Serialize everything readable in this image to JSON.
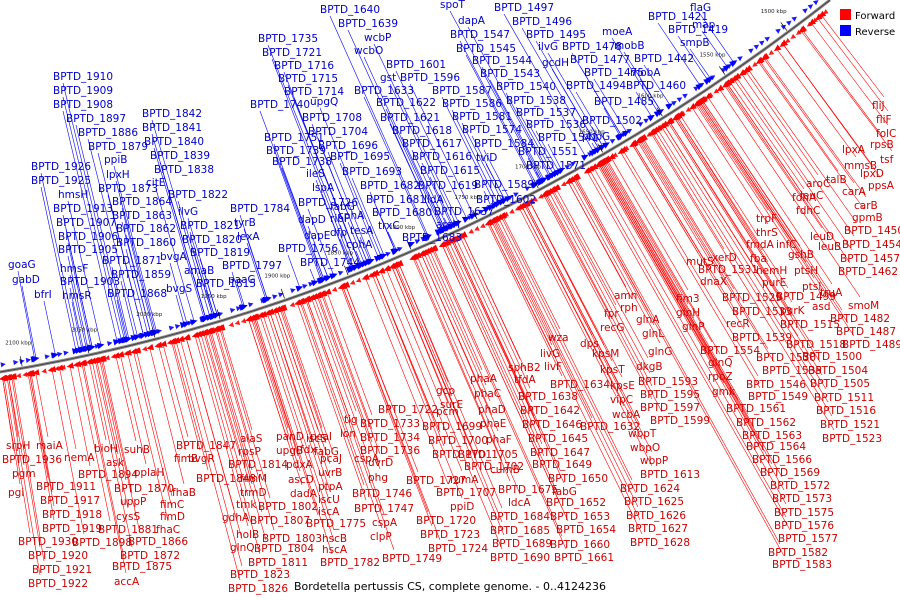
{
  "caption": "Bordetella pertussis CS, complete genome. - 0..4124236",
  "legend": {
    "forward_label": "Forward",
    "reverse_label": "Reverse",
    "forward_color": "#ff0000",
    "reverse_color": "#0000ff"
  },
  "axis_labels": [
    "2100 kbp",
    "2050 kbp",
    "2000 kbp",
    "1950 kbp",
    "1900 kbp",
    "1850 kbp",
    "1800 kbp",
    "1750 kbp",
    "1700 kbp",
    "1650 kbp",
    "1600 kbp",
    "1550 kbp",
    "1500 kbp"
  ],
  "reverse_genes": [
    [
      "goaG",
      8,
      268
    ],
    [
      "gabD",
      12,
      283
    ],
    [
      "bfrI",
      34,
      298
    ],
    [
      "hmsR",
      62,
      299
    ],
    [
      "BPTD_1903",
      60,
      285
    ],
    [
      "hmsF",
      60,
      272
    ],
    [
      "BPTD_1905",
      58,
      253
    ],
    [
      "BPTD_1906",
      58,
      240
    ],
    [
      "BPTD_1907",
      56,
      226
    ],
    [
      "BPTD_1913",
      53,
      212
    ],
    [
      "hmsH",
      58,
      198
    ],
    [
      "BPTD_1925",
      31,
      184
    ],
    [
      "BPTD_1926",
      31,
      170
    ],
    [
      "BPTD_1910",
      53,
      80
    ],
    [
      "BPTD_1909",
      53,
      94
    ],
    [
      "BPTD_1908",
      53,
      108
    ],
    [
      "BPTD_1897",
      66,
      122
    ],
    [
      "BPTD_1886",
      78,
      136
    ],
    [
      "BPTD_1879",
      88,
      150
    ],
    [
      "ppiB",
      104,
      163
    ],
    [
      "lpxH",
      106,
      178
    ],
    [
      "BPTD_1873",
      98,
      192
    ],
    [
      "BPTD_1864",
      112,
      205
    ],
    [
      "BPTD_1863",
      112,
      219
    ],
    [
      "BPTD_1862",
      116,
      232
    ],
    [
      "BPTD_1860",
      116,
      246
    ],
    [
      "BPTD_1871",
      102,
      264
    ],
    [
      "BPTD_1859",
      111,
      278
    ],
    [
      "BPTD_1868",
      107,
      297
    ],
    [
      "BPTD_1842",
      142,
      117
    ],
    [
      "BPTD_1841",
      142,
      131
    ],
    [
      "BPTD_1840",
      144,
      145
    ],
    [
      "BPTD_1839",
      150,
      159
    ],
    [
      "BPTD_1838",
      154,
      173
    ],
    [
      "citE",
      146,
      186
    ],
    [
      "BPTD_1822",
      168,
      198
    ],
    [
      "ilvG",
      178,
      215
    ],
    [
      "BPTD_1821",
      180,
      229
    ],
    [
      "BPTD_1820",
      182,
      243
    ],
    [
      "bvgA",
      160,
      260
    ],
    [
      "BPTD_1819",
      190,
      256
    ],
    [
      "amaB",
      184,
      274
    ],
    [
      "bvgS",
      166,
      292
    ],
    [
      "BPTD_1815",
      196,
      287
    ],
    [
      "BPTD_1797",
      222,
      269
    ],
    [
      "paaG",
      228,
      283
    ],
    [
      "BPTD_1784",
      230,
      212
    ],
    [
      "tyrB",
      234,
      226
    ],
    [
      "lexA",
      237,
      240
    ],
    [
      "BPTD_1735",
      258,
      42
    ],
    [
      "BPTD_1721",
      262,
      56
    ],
    [
      "BPTD_1716",
      274,
      69
    ],
    [
      "BPTD_1715",
      278,
      82
    ],
    [
      "BPTD_1714",
      284,
      95
    ],
    [
      "BPTD_1740",
      250,
      108
    ],
    [
      "upgQ",
      310,
      105
    ],
    [
      "BPTD_1708",
      302,
      121
    ],
    [
      "BPTD_1704",
      308,
      135
    ],
    [
      "BPTD_1751",
      264,
      141
    ],
    [
      "BPTD_1739",
      266,
      154
    ],
    [
      "BPTD_1738",
      272,
      165
    ],
    [
      "BPTD_1696",
      318,
      149
    ],
    [
      "ileS",
      306,
      177
    ],
    [
      "lspA",
      312,
      191
    ],
    [
      "BPTD_1726",
      298,
      206
    ],
    [
      "dapD",
      298,
      223
    ],
    [
      "dapE",
      304,
      239
    ],
    [
      "BPTD_1756",
      278,
      252
    ],
    [
      "BPTD_1744",
      300,
      266
    ],
    [
      "dfp",
      330,
      236
    ],
    [
      "ribF",
      330,
      222
    ],
    [
      "cphA",
      338,
      219
    ],
    [
      "cphA",
      346,
      248
    ],
    [
      "tesA",
      350,
      234
    ],
    [
      "BPTD_1695",
      330,
      160
    ],
    [
      "BPTD_1693",
      342,
      175
    ],
    [
      "fabG",
      330,
      210
    ],
    [
      "BPTD_1640",
      320,
      13
    ],
    [
      "BPTD_1639",
      338,
      27
    ],
    [
      "wcbP",
      364,
      41
    ],
    [
      "wcbO",
      354,
      54
    ],
    [
      "BPTD_1601",
      386,
      68
    ],
    [
      "gst",
      380,
      81
    ],
    [
      "BPTD_1596",
      400,
      81
    ],
    [
      "BPTD_1633",
      354,
      94
    ],
    [
      "BPTD_1622",
      376,
      106
    ],
    [
      "BPTD_1621",
      380,
      121
    ],
    [
      "BPTD_1618",
      392,
      134
    ],
    [
      "BPTD_1617",
      402,
      147
    ],
    [
      "BPTD_1616",
      412,
      160
    ],
    [
      "BPTD_1615",
      420,
      174
    ],
    [
      "BPTD_1682",
      360,
      189
    ],
    [
      "BPTD_1681",
      366,
      203
    ],
    [
      "BPTD_1680",
      372,
      216
    ],
    [
      "BPTD_1683",
      402,
      241
    ],
    [
      "trxC",
      378,
      229
    ],
    [
      "BPTD_1619",
      418,
      189
    ],
    [
      "lldA",
      424,
      203
    ],
    [
      "BPTD_1637",
      434,
      215
    ],
    [
      "arsH",
      436,
      228
    ],
    [
      "spoT",
      440,
      8
    ],
    [
      "dapA",
      458,
      24
    ],
    [
      "BPTD_1547",
      450,
      38
    ],
    [
      "BPTD_1545",
      456,
      52
    ],
    [
      "BPTD_1544",
      472,
      64
    ],
    [
      "BPTD_1543",
      480,
      77
    ],
    [
      "BPTD_1587",
      432,
      94
    ],
    [
      "BPTD_1586",
      442,
      107
    ],
    [
      "BPTD_1581",
      452,
      120
    ],
    [
      "BPTD_1574",
      462,
      133
    ],
    [
      "BPTD_1584",
      474,
      147
    ],
    [
      "tviD",
      476,
      161
    ],
    [
      "BPTD_1589",
      474,
      188
    ],
    [
      "BPTD_1602",
      476,
      203
    ],
    [
      "BPTD_1497",
      494,
      11
    ],
    [
      "BPTD_1496",
      512,
      25
    ],
    [
      "ilvG",
      538,
      50
    ],
    [
      "BPTD_1495",
      526,
      38
    ],
    [
      "gcdH",
      542,
      66
    ],
    [
      "BPTD_1540",
      496,
      90
    ],
    [
      "BPTD_1538",
      506,
      104
    ],
    [
      "BPTD_1537",
      516,
      116
    ],
    [
      "BPTD_1536",
      526,
      128
    ],
    [
      "BPTD_1541",
      538,
      141
    ],
    [
      "BPTD_1551",
      518,
      155
    ],
    [
      "BPTD_1571",
      526,
      169
    ],
    [
      "BPTD_1478",
      562,
      50
    ],
    [
      "BPTD_1477",
      570,
      63
    ],
    [
      "BPTD_1475",
      584,
      76
    ],
    [
      "BPTD_1494",
      566,
      89
    ],
    [
      "BPTD_1485",
      594,
      105
    ],
    [
      "BPTD_1502",
      582,
      124
    ],
    [
      "pbpG",
      582,
      140
    ],
    [
      "moeA",
      602,
      35
    ],
    [
      "mobB",
      614,
      49
    ],
    [
      "mobA",
      630,
      76
    ],
    [
      "BPTD_1442",
      634,
      62
    ],
    [
      "BPTD_1460",
      626,
      89
    ],
    [
      "BPTD_1421",
      648,
      20
    ],
    [
      "BPTD_1419",
      668,
      33
    ],
    [
      "smpB",
      680,
      46
    ],
    [
      "map",
      692,
      28
    ],
    [
      "flaG",
      690,
      11
    ]
  ],
  "forward_genes": [
    [
      "srpH",
      6,
      449
    ],
    [
      "BPTD_1936",
      2,
      463
    ],
    [
      "pgm",
      12,
      477
    ],
    [
      "pgi",
      8,
      496
    ],
    [
      "maiA",
      36,
      449
    ],
    [
      "nemA",
      64,
      461
    ],
    [
      "BPTD_1911",
      36,
      490
    ],
    [
      "BPTD_1917",
      40,
      504
    ],
    [
      "BPTD_1918",
      42,
      518
    ],
    [
      "BPTD_1919",
      42,
      532
    ],
    [
      "BPTD_1930",
      18,
      545
    ],
    [
      "BPTD_1920",
      28,
      559
    ],
    [
      "BPTD_1921",
      32,
      573
    ],
    [
      "BPTD_1922",
      28,
      587
    ],
    [
      "bioH",
      94,
      452
    ],
    [
      "ask",
      106,
      466
    ],
    [
      "BPTD_1894",
      78,
      478
    ],
    [
      "suhB",
      124,
      453
    ],
    [
      "oplaH",
      134,
      476
    ],
    [
      "BPTD_1870",
      114,
      492
    ],
    [
      "uppP",
      120,
      505
    ],
    [
      "cysS",
      116,
      520
    ],
    [
      "BPTD_1881",
      98,
      533
    ],
    [
      "BPTD_1898",
      72,
      546
    ],
    [
      "BPTD_1872",
      120,
      559
    ],
    [
      "BPTD_1875",
      112,
      570
    ],
    [
      "accA",
      114,
      585
    ],
    [
      "fimB",
      174,
      462
    ],
    [
      "bvgR",
      188,
      462
    ],
    [
      "BPTD_1847",
      176,
      449
    ],
    [
      "fhaB",
      172,
      496
    ],
    [
      "BPTD_1848",
      196,
      482
    ],
    [
      "fimC",
      160,
      508
    ],
    [
      "fimD",
      160,
      520
    ],
    [
      "fhaC",
      156,
      533
    ],
    [
      "BPTD_1866",
      128,
      545
    ],
    [
      "alaS",
      240,
      442
    ],
    [
      "rpsP",
      238,
      455
    ],
    [
      "BPTD_1814",
      228,
      468
    ],
    [
      "frmM",
      240,
      482
    ],
    [
      "trmD",
      240,
      496
    ],
    [
      "tmk",
      236,
      508
    ],
    [
      "gdhA",
      222,
      521
    ],
    [
      "holB",
      236,
      538
    ],
    [
      "glnQ",
      230,
      551
    ],
    [
      "BPTD_1823",
      230,
      578
    ],
    [
      "BPTD_1826",
      228,
      592
    ],
    [
      "BPTD_1811",
      248,
      566
    ],
    [
      "BPTD_1804",
      254,
      552
    ],
    [
      "BPTD_1803",
      262,
      542
    ],
    [
      "BPTD_1807",
      250,
      524
    ],
    [
      "BPTD_1802",
      258,
      510
    ],
    [
      "panD",
      276,
      440
    ],
    [
      "upgB",
      276,
      454
    ],
    [
      "pdxA",
      286,
      468
    ],
    [
      "ascD",
      288,
      483
    ],
    [
      "dadA",
      290,
      497
    ],
    [
      "fdx",
      300,
      453
    ],
    [
      "BPTD_1775",
      306,
      527
    ],
    [
      "hscB",
      322,
      542
    ],
    [
      "hscA",
      322,
      553
    ],
    [
      "BPTD_1782",
      320,
      566
    ],
    [
      "pcaI",
      310,
      440
    ],
    [
      "iscS",
      306,
      442
    ],
    [
      "fabG",
      314,
      455
    ],
    [
      "pcaJ",
      320,
      462
    ],
    [
      "uvrB",
      318,
      476
    ],
    [
      "ptpA",
      318,
      490
    ],
    [
      "iscU",
      318,
      503
    ],
    [
      "iscA",
      318,
      515
    ],
    [
      "tig",
      344,
      423
    ],
    [
      "lon",
      340,
      437
    ],
    [
      "BPTD_1733",
      360,
      427
    ],
    [
      "BPTD_1734",
      360,
      441
    ],
    [
      "BPTD_1736",
      360,
      454
    ],
    [
      "cspA",
      354,
      462
    ],
    [
      "uvrD",
      368,
      466
    ],
    [
      "phg",
      368,
      481
    ],
    [
      "BPTD_1746",
      352,
      497
    ],
    [
      "BPTD_1747",
      354,
      512
    ],
    [
      "cspA",
      372,
      526
    ],
    [
      "clpP",
      370,
      540
    ],
    [
      "BPTD_1749",
      382,
      562
    ],
    [
      "BPTD_1722",
      378,
      413
    ],
    [
      "gcp",
      436,
      394
    ],
    [
      "surE",
      440,
      408
    ],
    [
      "pcm",
      436,
      415
    ],
    [
      "BPTD_1699",
      422,
      430
    ],
    [
      "BPTD_1700",
      428,
      444
    ],
    [
      "BPTD_1701",
      432,
      458
    ],
    [
      "BPTD_1727",
      406,
      484
    ],
    [
      "rumA",
      450,
      483
    ],
    [
      "BPTD_1707",
      436,
      496
    ],
    [
      "ppiD",
      450,
      510
    ],
    [
      "BPTD_1720",
      416,
      524
    ],
    [
      "BPTD_1723",
      420,
      538
    ],
    [
      "BPTD_1724",
      428,
      552
    ],
    [
      "phaA",
      470,
      382
    ],
    [
      "phaC",
      474,
      397
    ],
    [
      "phaD",
      478,
      413
    ],
    [
      "phaE",
      480,
      427
    ],
    [
      "phaF",
      486,
      443
    ],
    [
      "BPTD_1702",
      464,
      470
    ],
    [
      "BPTD_1705",
      458,
      458
    ],
    [
      "cumB",
      490,
      473
    ],
    [
      "BPTD_1675",
      498,
      493
    ],
    [
      "ldcA",
      508,
      506
    ],
    [
      "BPTD_1684",
      490,
      520
    ],
    [
      "BPTD_1685",
      490,
      534
    ],
    [
      "BPTD_1689",
      492,
      547
    ],
    [
      "BPTD_1690",
      490,
      561
    ],
    [
      "sphB2",
      508,
      371
    ],
    [
      "tfdA",
      514,
      383
    ],
    [
      "BPTD_1638",
      518,
      400
    ],
    [
      "BPTD_1642",
      520,
      414
    ],
    [
      "BPTD_1646",
      522,
      428
    ],
    [
      "BPTD_1645",
      528,
      442
    ],
    [
      "BPTD_1647",
      530,
      456
    ],
    [
      "BPTD_1649",
      532,
      468
    ],
    [
      "BPTD_1650",
      548,
      482
    ],
    [
      "fabG",
      552,
      495
    ],
    [
      "BPTD_1652",
      546,
      506
    ],
    [
      "BPTD_1653",
      550,
      520
    ],
    [
      "BPTD_1654",
      556,
      533
    ],
    [
      "BPTD_1660",
      550,
      548
    ],
    [
      "BPTD_1661",
      554,
      561
    ],
    [
      "livG",
      540,
      357
    ],
    [
      "livF",
      544,
      370
    ],
    [
      "BPTD_1634",
      550,
      388
    ],
    [
      "BPTD_1632",
      580,
      430
    ],
    [
      "wza",
      548,
      341
    ],
    [
      "dps",
      580,
      347
    ],
    [
      "kpsM",
      592,
      357
    ],
    [
      "kpsT",
      600,
      373
    ],
    [
      "kpsE",
      610,
      389
    ],
    [
      "vipC",
      610,
      403
    ],
    [
      "wcbA",
      612,
      418
    ],
    [
      "wbpT",
      628,
      437
    ],
    [
      "wbpO",
      630,
      451
    ],
    [
      "wbpP",
      640,
      464
    ],
    [
      "BPTD_1613",
      640,
      478
    ],
    [
      "BPTD_1624",
      620,
      492
    ],
    [
      "BPTD_1625",
      624,
      505
    ],
    [
      "BPTD_1626",
      626,
      519
    ],
    [
      "BPTD_1627",
      628,
      532
    ],
    [
      "BPTD_1628",
      630,
      546
    ],
    [
      "recG",
      600,
      331
    ],
    [
      "fpr",
      604,
      317
    ],
    [
      "amn",
      614,
      299
    ],
    [
      "rph",
      620,
      311
    ],
    [
      "glnA",
      636,
      323
    ],
    [
      "glnL",
      642,
      337
    ],
    [
      "glnG",
      648,
      355
    ],
    [
      "dkgB",
      636,
      370
    ],
    [
      "BPTD_1593",
      638,
      385
    ],
    [
      "BPTD_1595",
      640,
      398
    ],
    [
      "BPTD_1597",
      640,
      411
    ],
    [
      "BPTD_1599",
      650,
      424
    ],
    [
      "mutS",
      686,
      265
    ],
    [
      "dnaX",
      700,
      285
    ],
    [
      "fim3",
      676,
      302
    ],
    [
      "glnH",
      676,
      316
    ],
    [
      "glnP",
      682,
      330
    ],
    [
      "BPTD_1554",
      700,
      354
    ],
    [
      "glnQ",
      708,
      366
    ],
    [
      "rpoZ",
      708,
      380
    ],
    [
      "gmk",
      712,
      395
    ],
    [
      "BPTD_1561",
      726,
      412
    ],
    [
      "BPTD_1562",
      736,
      426
    ],
    [
      "BPTD_1563",
      742,
      439
    ],
    [
      "BPTD_1564",
      746,
      450
    ],
    [
      "BPTD_1566",
      752,
      463
    ],
    [
      "BPTD_1569",
      760,
      476
    ],
    [
      "BPTD_1572",
      770,
      489
    ],
    [
      "BPTD_1573",
      772,
      502
    ],
    [
      "BPTD_1575",
      774,
      516
    ],
    [
      "BPTD_1576",
      774,
      529
    ],
    [
      "BPTD_1577",
      778,
      542
    ],
    [
      "BPTD_1582",
      768,
      556
    ],
    [
      "BPTD_1583",
      772,
      568
    ],
    [
      "xerD",
      712,
      261
    ],
    [
      "BPTD_1531",
      698,
      273
    ],
    [
      "BPTD_1529",
      722,
      301
    ],
    [
      "BPTD_1533",
      732,
      315
    ],
    [
      "recR",
      726,
      327
    ],
    [
      "BPTD_1539",
      732,
      341
    ],
    [
      "BPTD_1530",
      756,
      361
    ],
    [
      "BPTD_1535",
      762,
      374
    ],
    [
      "BPTD_1546",
      746,
      388
    ],
    [
      "BPTD_1549",
      748,
      400
    ],
    [
      "fba",
      750,
      262
    ],
    [
      "hemH",
      756,
      274
    ],
    [
      "purE",
      762,
      286
    ],
    [
      "purK",
      780,
      314
    ],
    [
      "BPTD_1515",
      780,
      328
    ],
    [
      "BPTD_1518",
      786,
      348
    ],
    [
      "fmdA",
      746,
      248
    ],
    [
      "infC",
      776,
      248
    ],
    [
      "gshB",
      788,
      258
    ],
    [
      "ptsH",
      794,
      274
    ],
    [
      "BPTD_1499",
      776,
      300
    ],
    [
      "BPTD_1500",
      802,
      360
    ],
    [
      "BPTD_1504",
      808,
      374
    ],
    [
      "BPTD_1505",
      810,
      387
    ],
    [
      "BPTD_1511",
      814,
      401
    ],
    [
      "BPTD_1516",
      816,
      414
    ],
    [
      "BPTD_1521",
      820,
      428
    ],
    [
      "BPTD_1523",
      822,
      442
    ],
    [
      "trpF",
      756,
      222
    ],
    [
      "thrS",
      756,
      236
    ],
    [
      "fdhC",
      796,
      214
    ],
    [
      "leuC",
      800,
      199
    ],
    [
      "leuD",
      810,
      240
    ],
    [
      "leuB",
      818,
      250
    ],
    [
      "fdhA",
      792,
      201
    ],
    [
      "ptsI",
      802,
      290
    ],
    [
      "asd",
      812,
      310
    ],
    [
      "truA",
      820,
      296
    ],
    [
      "BPTD_1450",
      844,
      234
    ],
    [
      "BPTD_1454",
      842,
      248
    ],
    [
      "BPTD_1457",
      840,
      262
    ],
    [
      "BPTD_1462",
      838,
      275
    ],
    [
      "smoM",
      848,
      309
    ],
    [
      "BPTD_1482",
      830,
      322
    ],
    [
      "BPTD_1487",
      836,
      335
    ],
    [
      "BPTD_1489",
      842,
      348
    ],
    [
      "aroC",
      806,
      187
    ],
    [
      "talB",
      826,
      183
    ],
    [
      "carA",
      842,
      195
    ],
    [
      "carB",
      854,
      209
    ],
    [
      "gpmB",
      852,
      221
    ],
    [
      "mmsB",
      844,
      169
    ],
    [
      "lpxA",
      842,
      153
    ],
    [
      "lpxD",
      860,
      177
    ],
    [
      "rpsB",
      870,
      148
    ],
    [
      "tsf",
      880,
      163
    ],
    [
      "ppsA",
      868,
      189
    ],
    [
      "folC",
      876,
      137
    ],
    [
      "fliF",
      876,
      123
    ],
    [
      "fliJ",
      872,
      109
    ]
  ]
}
